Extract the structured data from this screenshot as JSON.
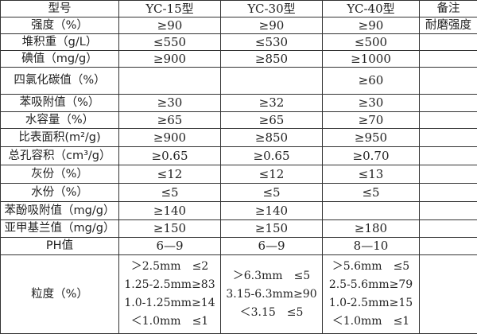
{
  "header": [
    "型号",
    "YC-15型",
    "YC-30型",
    "YC-40型",
    "备注"
  ],
  "rows": [
    {
      "label": "强度（%）",
      "values": [
        "≥90",
        "≥90",
        "≥90"
      ],
      "note": "耐磨强度"
    },
    {
      "label": "堆积重（g/L）",
      "values": [
        "≤550",
        "≤530",
        "≤500"
      ],
      "note": ""
    },
    {
      "label": "碘值（mg/g）",
      "values": [
        "≥900",
        "≥850",
        "≥1000"
      ],
      "note": ""
    },
    {
      "label": "四氯化碳值（%）",
      "values": [
        "",
        "",
        "≥60"
      ],
      "note": ""
    },
    {
      "label": "苯吸附值（%）",
      "values": [
        "≥30",
        "≥32",
        "≥30"
      ],
      "note": ""
    },
    {
      "label": "水容量（%）",
      "values": [
        "≥65",
        "≥65",
        "≥70"
      ],
      "note": ""
    },
    {
      "label": "比表面积(m²/g)",
      "values": [
        "≥900",
        "≥850",
        "≥950"
      ],
      "note": ""
    },
    {
      "label": "总孔容积（cm³/g）",
      "values": [
        "≥0.65",
        "≥0.65",
        "≥0.70"
      ],
      "note": ""
    },
    {
      "label": "灰份（%）",
      "values": [
        "≤12",
        "≤12",
        "≤13"
      ],
      "note": ""
    },
    {
      "label": "水份（%）",
      "values": [
        "≤5",
        "≤5",
        "≤5"
      ],
      "note": ""
    },
    {
      "label": "苯酚吸附值（mg/g）",
      "values": [
        "≥140",
        "≥140",
        ""
      ],
      "note": ""
    },
    {
      "label": "亚甲基兰值（mg/g）",
      "values": [
        "≥150",
        "≥150",
        "≥180"
      ],
      "note": ""
    },
    {
      "label": "PH值",
      "values": [
        "6—9",
        "6—9",
        "8—10"
      ],
      "note": ""
    }
  ],
  "granularity": {
    "label": "粒度（%）",
    "yc15": [
      "＞2.5mm　≤2",
      "1.25-2.5mm≥83",
      "1.0-1.25mm≥14",
      "＜1.0mm　≤1"
    ],
    "yc30": [
      "＞6.3mm　≤5",
      "3.15-6.3mm≥90",
      "＜3.15　≤5"
    ],
    "yc40": [
      "＞5.6mm　≤5",
      "2.5-5.6mm≥79",
      "1.0-2.5mm≥15",
      "＜1.0mm　≤1"
    ],
    "note": ""
  }
}
